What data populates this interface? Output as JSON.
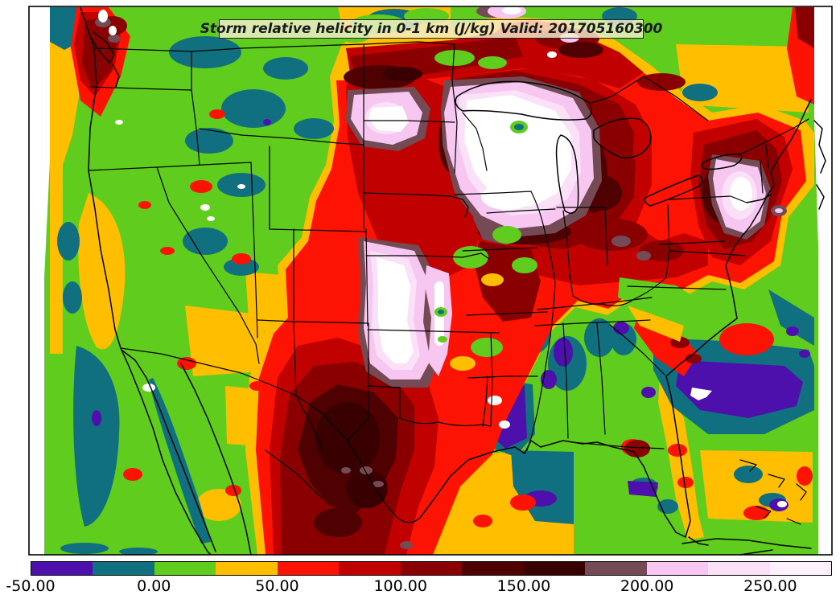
{
  "title": {
    "text": "Storm relative helicity in 0-1 km (J/kg) Valid: 201705160300"
  },
  "chart_data": {
    "type": "heatmap",
    "title": "Storm relative helicity in 0-1 km (J/kg) Valid: 201705160300",
    "variable": "Storm relative helicity in 0-1 km",
    "units": "J/kg",
    "valid_label": "Valid: 201705160300",
    "region": "filled contour map over continental United States with state borders and coastlines",
    "value_range": [
      -50,
      275
    ],
    "colorbar_ticks": [
      "-50.00",
      "0.00",
      "50.00",
      "100.00",
      "150.00",
      "200.00",
      "250.00"
    ],
    "legend_position": "bottom"
  },
  "colorbar": {
    "value_min": -50,
    "value_max": 275,
    "segment_step": 25,
    "segments": [
      {
        "from": -50,
        "to": -25,
        "color": "#4E10AC"
      },
      {
        "from": -25,
        "to": 0,
        "color": "#11707F"
      },
      {
        "from": 0,
        "to": 25,
        "color": "#5FCC1E"
      },
      {
        "from": 25,
        "to": 50,
        "color": "#FFBE00"
      },
      {
        "from": 50,
        "to": 75,
        "color": "#FC1303"
      },
      {
        "from": 75,
        "to": 100,
        "color": "#C10000"
      },
      {
        "from": 100,
        "to": 125,
        "color": "#8A0000"
      },
      {
        "from": 125,
        "to": 150,
        "color": "#4F0000"
      },
      {
        "from": 150,
        "to": 175,
        "color": "#380000"
      },
      {
        "from": 175,
        "to": 200,
        "color": "#744B55"
      },
      {
        "from": 200,
        "to": 225,
        "color": "#F7C6F1"
      },
      {
        "from": 225,
        "to": 250,
        "color": "#FAE1F7"
      },
      {
        "from": 250,
        "to": 275,
        "color": "#FDF1FB"
      }
    ],
    "ticks": [
      {
        "value": -50,
        "label": "-50.00"
      },
      {
        "value": 0,
        "label": "0.00"
      },
      {
        "value": 50,
        "label": "50.00"
      },
      {
        "value": 100,
        "label": "100.00"
      },
      {
        "value": 150,
        "label": "150.00"
      },
      {
        "value": 200,
        "label": "200.00"
      },
      {
        "value": 250,
        "label": "250.00"
      }
    ]
  }
}
